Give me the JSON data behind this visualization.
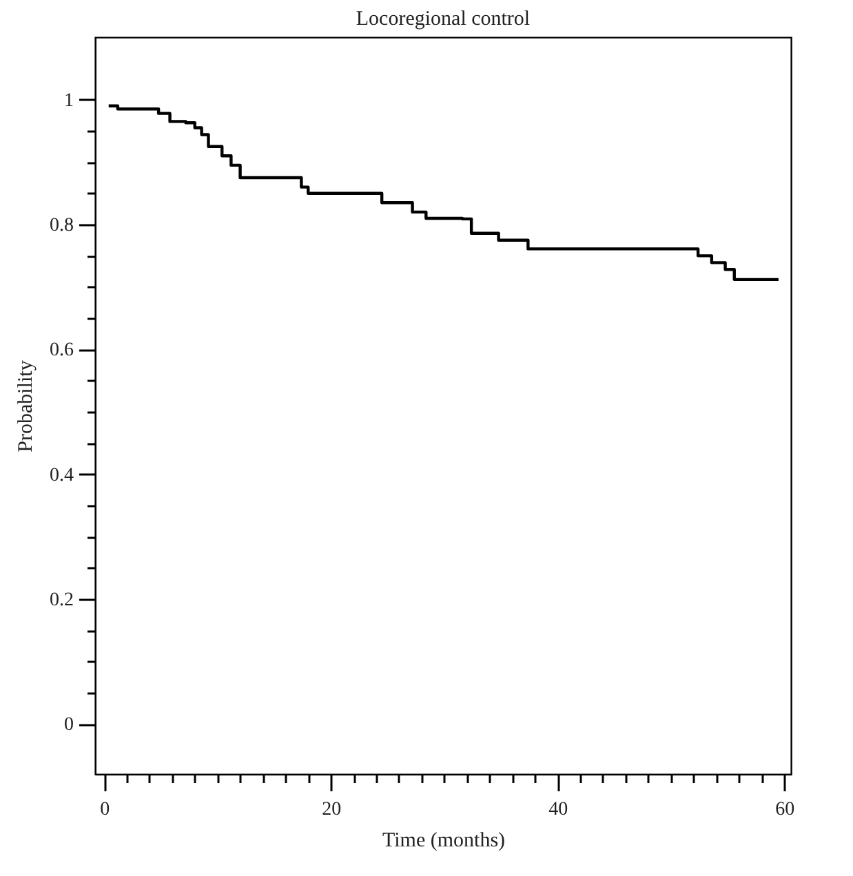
{
  "chart_data": {
    "type": "step",
    "title": "Locoregional control",
    "xlabel": "Time (months)",
    "ylabel": "Probability",
    "x": [
      0.4,
      1.2,
      4.0,
      4.8,
      5.8,
      7.2,
      8.0,
      8.6,
      9.2,
      10.4,
      11.2,
      12.0,
      17.4,
      18.0,
      24.0,
      24.5,
      27.2,
      28.4,
      31.6,
      32.4,
      34.8,
      37.4,
      51.6,
      52.4,
      53.6,
      54.8,
      55.6,
      59.5
    ],
    "series": [
      {
        "color": "#000000",
        "values": [
          0.99,
          0.985,
          0.985,
          0.978,
          0.965,
          0.963,
          0.955,
          0.944,
          0.925,
          0.91,
          0.895,
          0.875,
          0.86,
          0.85,
          0.85,
          0.835,
          0.82,
          0.81,
          0.809,
          0.786,
          0.775,
          0.761,
          0.761,
          0.75,
          0.739,
          0.728,
          0.712,
          0.712
        ]
      }
    ],
    "xlim": [
      -0.8,
      60.6
    ],
    "xticks": [
      0,
      {
        "value": 2,
        "label": null
      },
      {
        "value": 4,
        "label": null
      },
      {
        "value": 6,
        "label": null
      },
      {
        "value": 8,
        "label": null
      },
      {
        "value": 10,
        "label": null
      },
      {
        "value": 12,
        "label": null
      },
      {
        "value": 14,
        "label": null
      },
      {
        "value": 16,
        "label": null
      },
      {
        "value": 18,
        "label": null
      },
      20,
      {
        "value": 22,
        "label": null
      },
      {
        "value": 24,
        "label": null
      },
      {
        "value": 26,
        "label": null
      },
      {
        "value": 28,
        "label": null
      },
      {
        "value": 30,
        "label": null
      },
      {
        "value": 32,
        "label": null
      },
      {
        "value": 34,
        "label": null
      },
      {
        "value": 36,
        "label": null
      },
      {
        "value": 38,
        "label": null
      },
      40,
      {
        "value": 42,
        "label": null
      },
      {
        "value": 44,
        "label": null
      },
      {
        "value": 46,
        "label": null
      },
      {
        "value": 48,
        "label": null
      },
      {
        "value": 50,
        "label": null
      },
      {
        "value": 52,
        "label": null
      },
      {
        "value": 54,
        "label": null
      },
      {
        "value": 56,
        "label": null
      },
      {
        "value": 58,
        "label": null
      },
      60
    ],
    "ylim": [
      -0.08,
      1.1
    ],
    "yticks": [
      0,
      {
        "value": 0.05,
        "label": null
      },
      {
        "value": 0.1,
        "label": null
      },
      {
        "value": 0.15,
        "label": null
      },
      0.2,
      {
        "value": 0.25,
        "label": null
      },
      {
        "value": 0.3,
        "label": null
      },
      {
        "value": 0.35,
        "label": null
      },
      0.4,
      {
        "value": 0.45,
        "label": null
      },
      {
        "value": 0.5,
        "label": null
      },
      {
        "value": 0.55,
        "label": null
      },
      0.6,
      {
        "value": 0.65,
        "label": null
      },
      {
        "value": 0.7,
        "label": null
      },
      {
        "value": 0.75,
        "label": null
      },
      0.8,
      {
        "value": 0.85,
        "label": null
      },
      {
        "value": 0.9,
        "label": null
      },
      {
        "value": 0.95,
        "label": null
      },
      1
    ],
    "grid": false,
    "marker": "none",
    "line_style": "solid"
  }
}
